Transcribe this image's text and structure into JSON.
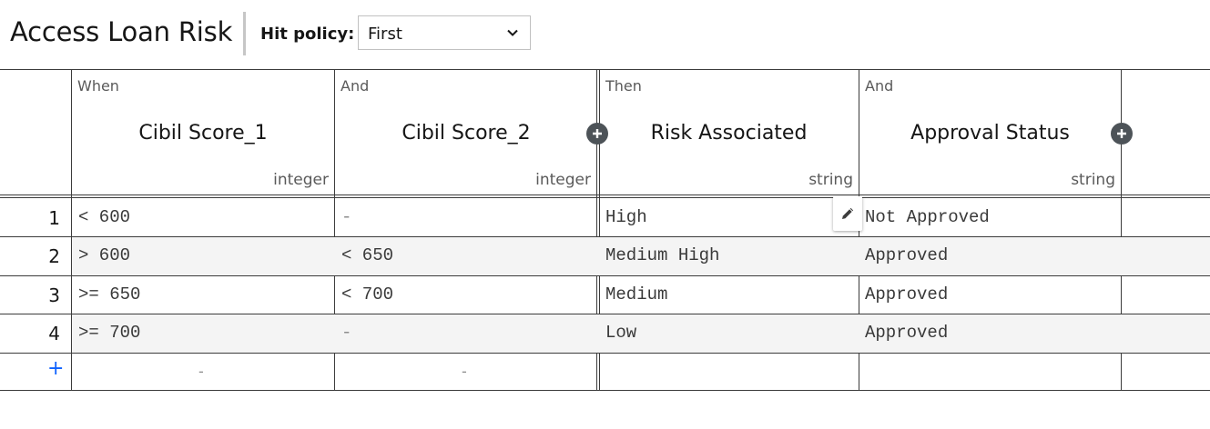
{
  "header": {
    "title": "Access Loan Risk",
    "hit_policy_label": "Hit policy:",
    "hit_policy_value": "First"
  },
  "columns": [
    {
      "kind": "When",
      "name": "Cibil Score_1",
      "type": "integer"
    },
    {
      "kind": "And",
      "name": "Cibil Score_2",
      "type": "integer"
    },
    {
      "kind": "Then",
      "name": "Risk Associated",
      "type": "string"
    },
    {
      "kind": "And",
      "name": "Approval Status",
      "type": "string"
    }
  ],
  "rows": [
    {
      "num": "1",
      "cells": [
        "< 600",
        "-",
        "High",
        "Not Approved"
      ]
    },
    {
      "num": "2",
      "cells": [
        "> 600",
        "< 650",
        "Medium High",
        "Approved"
      ]
    },
    {
      "num": "3",
      "cells": [
        ">= 650",
        "< 700",
        "Medium",
        "Approved"
      ]
    },
    {
      "num": "4",
      "cells": [
        ">= 700",
        "-",
        "Low",
        "Approved"
      ]
    }
  ],
  "new_row": {
    "add_label": "+",
    "cells": [
      "-",
      "-",
      "",
      ""
    ]
  },
  "colors": {
    "add_accent": "#0f62fe",
    "alt_row_bg": "#f4f4f4",
    "border": "#3b3b3b",
    "icon_bg": "#4d5358"
  },
  "icons": {
    "add_input": "plus-circle-icon",
    "add_output": "plus-circle-icon",
    "edit": "pencil-icon",
    "dropdown": "chevron-down-icon"
  }
}
